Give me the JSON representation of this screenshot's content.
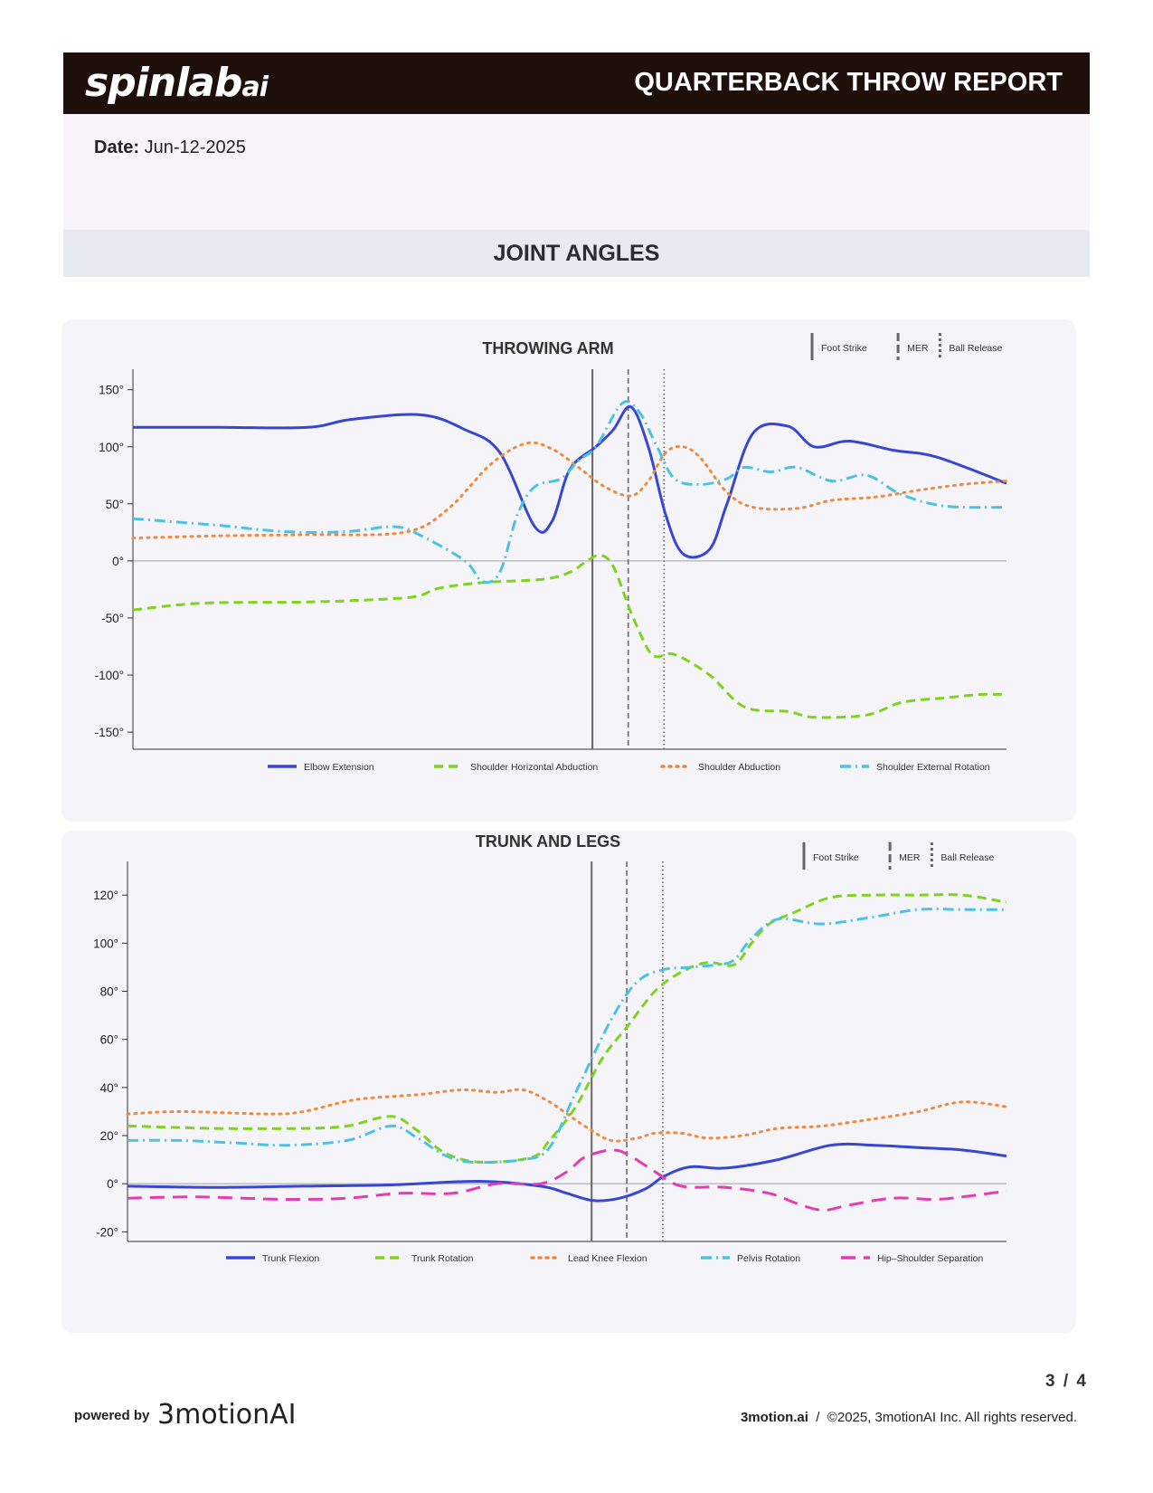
{
  "header": {
    "logo_main": "spinlab",
    "logo_suffix": "ai",
    "title": "QUARTERBACK THROW REPORT"
  },
  "info": {
    "date_label": "Date:",
    "date_value": "Jun-12-2025"
  },
  "section_title": "JOINT ANGLES",
  "event_legend": [
    "Foot Strike",
    "MER",
    "Ball Release"
  ],
  "chart_data": [
    {
      "type": "line",
      "title": "THROWING ARM",
      "ylim": [
        -165,
        168
      ],
      "yticks": [
        -150,
        -100,
        -50,
        0,
        50,
        100,
        150
      ],
      "ytick_suffix": "°",
      "events": [
        {
          "name": "Foot Strike",
          "x": 52.6,
          "style": "solid"
        },
        {
          "name": "MER",
          "x": 56.7,
          "style": "dashed"
        },
        {
          "name": "Ball Release",
          "x": 60.8,
          "style": "dotted"
        }
      ],
      "series": [
        {
          "name": "Elbow Extension",
          "color": "#3746d4",
          "style": "solid",
          "points": [
            [
              0,
              117
            ],
            [
              10,
              117
            ],
            [
              20,
              117
            ],
            [
              25,
              124
            ],
            [
              33,
              128
            ],
            [
              38,
              115
            ],
            [
              42,
              95
            ],
            [
              46,
              30
            ],
            [
              48,
              35
            ],
            [
              50,
              80
            ],
            [
              53,
              100
            ],
            [
              55,
              115
            ],
            [
              57,
              135
            ],
            [
              59,
              100
            ],
            [
              61,
              40
            ],
            [
              63,
              6
            ],
            [
              66,
              10
            ],
            [
              68,
              50
            ],
            [
              71,
              112
            ],
            [
              75,
              118
            ],
            [
              78,
              100
            ],
            [
              82,
              105
            ],
            [
              87,
              97
            ],
            [
              92,
              91
            ],
            [
              100,
              68
            ]
          ]
        },
        {
          "name": "Shoulder Horizontal Abduction",
          "color": "#7fd21e",
          "style": "dashed",
          "points": [
            [
              0,
              -43
            ],
            [
              8,
              -37
            ],
            [
              20,
              -36
            ],
            [
              30,
              -33
            ],
            [
              33,
              -30
            ],
            [
              35,
              -24
            ],
            [
              40,
              -19
            ],
            [
              47,
              -16
            ],
            [
              50,
              -10
            ],
            [
              52,
              0
            ],
            [
              53.5,
              5
            ],
            [
              55,
              -5
            ],
            [
              57,
              -45
            ],
            [
              59,
              -78
            ],
            [
              60,
              -84
            ],
            [
              62,
              -82
            ],
            [
              66,
              -100
            ],
            [
              70,
              -128
            ],
            [
              75,
              -132
            ],
            [
              78,
              -137
            ],
            [
              84,
              -135
            ],
            [
              88,
              -124
            ],
            [
              93,
              -120
            ],
            [
              97,
              -117
            ],
            [
              100,
              -117
            ]
          ]
        },
        {
          "name": "Shoulder Abduction",
          "color": "#f08a3c",
          "style": "dotted",
          "points": [
            [
              0,
              20
            ],
            [
              10,
              22
            ],
            [
              20,
              23
            ],
            [
              31,
              25
            ],
            [
              36,
              45
            ],
            [
              41,
              85
            ],
            [
              45,
              103
            ],
            [
              48,
              98
            ],
            [
              51,
              82
            ],
            [
              54,
              65
            ],
            [
              57,
              57
            ],
            [
              59,
              70
            ],
            [
              61,
              95
            ],
            [
              63,
              100
            ],
            [
              65,
              90
            ],
            [
              68,
              60
            ],
            [
              71,
              47
            ],
            [
              76,
              46
            ],
            [
              80,
              53
            ],
            [
              85,
              56
            ],
            [
              90,
              62
            ],
            [
              95,
              67
            ],
            [
              100,
              70
            ]
          ]
        },
        {
          "name": "Shoulder External Rotation",
          "color": "#4cc2e3",
          "style": "dashdot",
          "points": [
            [
              0,
              37
            ],
            [
              10,
              31
            ],
            [
              15,
              27
            ],
            [
              20,
              25
            ],
            [
              25,
              26
            ],
            [
              30,
              30
            ],
            [
              33,
              22
            ],
            [
              38,
              0
            ],
            [
              40,
              -18
            ],
            [
              42,
              -10
            ],
            [
              44,
              40
            ],
            [
              46,
              65
            ],
            [
              49,
              72
            ],
            [
              51,
              88
            ],
            [
              53,
              100
            ],
            [
              56,
              138
            ],
            [
              58,
              130
            ],
            [
              60,
              100
            ],
            [
              62,
              72
            ],
            [
              65,
              67
            ],
            [
              68,
              72
            ],
            [
              70,
              82
            ],
            [
              73,
              78
            ],
            [
              76,
              82
            ],
            [
              80,
              70
            ],
            [
              84,
              75
            ],
            [
              88,
              58
            ],
            [
              93,
              48
            ],
            [
              100,
              47
            ]
          ]
        }
      ],
      "legend": [
        {
          "label": "Elbow Extension"
        },
        {
          "label": "Shoulder Horizontal Abduction"
        },
        {
          "label": "Shoulder Abduction"
        },
        {
          "label": "Shoulder External Rotation"
        }
      ]
    },
    {
      "type": "line",
      "title": "TRUNK AND LEGS",
      "ylim": [
        -24,
        134
      ],
      "yticks": [
        -20,
        0,
        20,
        40,
        60,
        80,
        100,
        120
      ],
      "ytick_suffix": "°",
      "events": [
        {
          "name": "Foot Strike",
          "x": 52.8,
          "style": "solid"
        },
        {
          "name": "MER",
          "x": 56.8,
          "style": "dashed"
        },
        {
          "name": "Ball Release",
          "x": 60.9,
          "style": "dotted"
        }
      ],
      "series": [
        {
          "name": "Trunk Flexion",
          "color": "#3746d4",
          "style": "solid",
          "points": [
            [
              0,
              -1
            ],
            [
              10,
              -1.5
            ],
            [
              20,
              -1
            ],
            [
              30,
              -0.5
            ],
            [
              40,
              1
            ],
            [
              47,
              -1
            ],
            [
              50,
              -4
            ],
            [
              53,
              -7
            ],
            [
              56,
              -6
            ],
            [
              59,
              -2
            ],
            [
              61,
              3
            ],
            [
              64,
              7
            ],
            [
              68,
              6.5
            ],
            [
              74,
              10
            ],
            [
              80,
              16
            ],
            [
              85,
              16
            ],
            [
              90,
              15
            ],
            [
              95,
              14
            ],
            [
              100,
              11.5
            ]
          ]
        },
        {
          "name": "Trunk Rotation",
          "color": "#7fd21e",
          "style": "dashed",
          "points": [
            [
              0,
              24
            ],
            [
              10,
              23
            ],
            [
              20,
              23
            ],
            [
              25,
              24
            ],
            [
              30,
              28
            ],
            [
              33,
              22
            ],
            [
              36,
              13
            ],
            [
              40,
              9
            ],
            [
              46,
              11
            ],
            [
              48,
              18
            ],
            [
              51,
              32
            ],
            [
              54,
              52
            ],
            [
              57,
              66
            ],
            [
              60,
              80
            ],
            [
              63,
              88
            ],
            [
              66,
              92
            ],
            [
              69,
              91
            ],
            [
              71,
              100
            ],
            [
              73,
              108
            ],
            [
              76,
              113
            ],
            [
              80,
              119
            ],
            [
              85,
              120
            ],
            [
              90,
              120
            ],
            [
              95,
              120
            ],
            [
              100,
              117
            ]
          ]
        },
        {
          "name": "Lead Knee Flexion",
          "color": "#f08a3c",
          "style": "dotted",
          "points": [
            [
              0,
              29
            ],
            [
              6,
              30
            ],
            [
              16,
              29
            ],
            [
              20,
              30
            ],
            [
              26,
              35
            ],
            [
              33,
              37
            ],
            [
              38,
              39
            ],
            [
              42,
              38
            ],
            [
              45,
              39
            ],
            [
              48,
              34
            ],
            [
              52,
              24
            ],
            [
              55,
              18
            ],
            [
              58,
              19
            ],
            [
              60,
              21
            ],
            [
              63,
              21
            ],
            [
              66,
              19
            ],
            [
              70,
              20
            ],
            [
              74,
              23
            ],
            [
              79,
              24
            ],
            [
              85,
              27
            ],
            [
              90,
              30
            ],
            [
              95,
              34
            ],
            [
              100,
              32
            ]
          ]
        },
        {
          "name": "Pelvis Rotation",
          "color": "#4cc2e3",
          "style": "dashdot",
          "points": [
            [
              0,
              18
            ],
            [
              6,
              18
            ],
            [
              12,
              17
            ],
            [
              18,
              16
            ],
            [
              25,
              18
            ],
            [
              30,
              24
            ],
            [
              33,
              19
            ],
            [
              36,
              12
            ],
            [
              39,
              9
            ],
            [
              45,
              10
            ],
            [
              48,
              15
            ],
            [
              51,
              38
            ],
            [
              55,
              68
            ],
            [
              58,
              84
            ],
            [
              61,
              89
            ],
            [
              64,
              90
            ],
            [
              67,
              91
            ],
            [
              69,
              93
            ],
            [
              71,
              102
            ],
            [
              74,
              110
            ],
            [
              79,
              108
            ],
            [
              85,
              111
            ],
            [
              90,
              114
            ],
            [
              95,
              114
            ],
            [
              100,
              114
            ]
          ]
        },
        {
          "name": "Hip–Shoulder Separation",
          "color": "#e53db1",
          "style": "longdash",
          "points": [
            [
              0,
              -6
            ],
            [
              8,
              -5.5
            ],
            [
              18,
              -6.5
            ],
            [
              25,
              -6
            ],
            [
              31,
              -4
            ],
            [
              37,
              -4
            ],
            [
              42,
              0
            ],
            [
              47,
              0
            ],
            [
              50,
              5
            ],
            [
              52,
              11
            ],
            [
              55,
              14
            ],
            [
              57,
              12
            ],
            [
              60,
              5
            ],
            [
              63,
              -1
            ],
            [
              68,
              -1.5
            ],
            [
              73,
              -4
            ],
            [
              76,
              -8
            ],
            [
              79,
              -11
            ],
            [
              82,
              -9
            ],
            [
              87,
              -6
            ],
            [
              92,
              -6.5
            ],
            [
              96,
              -5
            ],
            [
              100,
              -3
            ]
          ]
        }
      ],
      "legend": [
        {
          "label": "Trunk Flexion"
        },
        {
          "label": "Trunk Rotation"
        },
        {
          "label": "Lead Knee Flexion"
        },
        {
          "label": "Pelvis Rotation"
        },
        {
          "label": "Hip–Shoulder Separation"
        }
      ]
    }
  ],
  "footer": {
    "page": "3 / 4",
    "powered_by": "powered by",
    "brand": "3motionAI",
    "site": "3motion.ai",
    "copyright": "©2025, 3motionAI Inc. All rights reserved."
  }
}
